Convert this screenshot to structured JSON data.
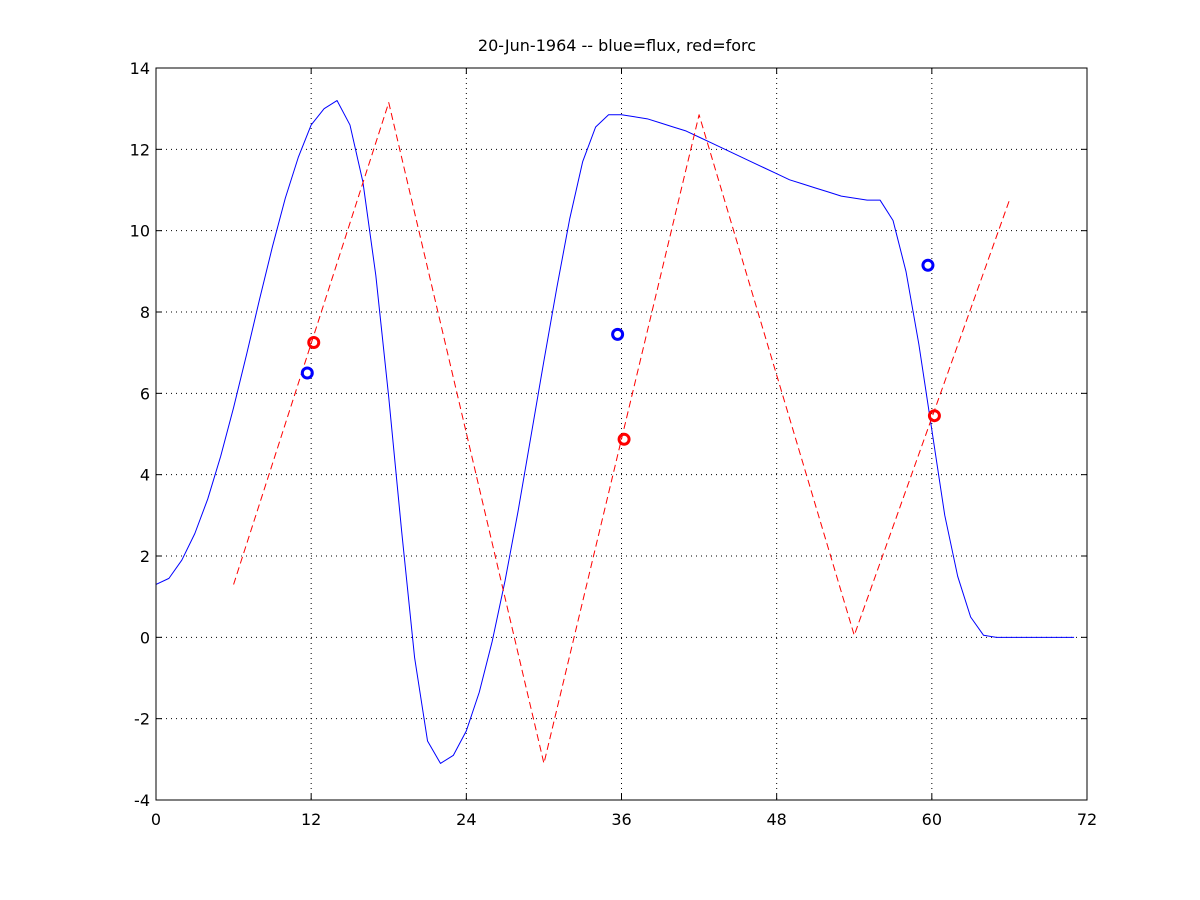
{
  "chart_data": {
    "type": "line",
    "title": "20-Jun-1964 -- blue=flux, red=forc",
    "xlabel": "",
    "ylabel": "",
    "xlim": [
      0,
      72
    ],
    "ylim": [
      -4,
      14
    ],
    "xticks": [
      0,
      12,
      24,
      36,
      48,
      60,
      72
    ],
    "yticks": [
      -4,
      -2,
      0,
      2,
      4,
      6,
      8,
      10,
      12,
      14
    ],
    "grid": true,
    "series": [
      {
        "color": "#0000ff",
        "style": "solid",
        "x": [
          0,
          1,
          2,
          3,
          4,
          5,
          6,
          7,
          8,
          9,
          10,
          11,
          12,
          13,
          14,
          15,
          16,
          17,
          18,
          19,
          20,
          21,
          22,
          23,
          24,
          25,
          26,
          27,
          28,
          29,
          30,
          31,
          32,
          33,
          34,
          35,
          36,
          37,
          38,
          39,
          40,
          41,
          42,
          43,
          44,
          45,
          46,
          47,
          48,
          49,
          50,
          51,
          52,
          53,
          54,
          55,
          56,
          57,
          58,
          59,
          60,
          61,
          62,
          63,
          64,
          65,
          66,
          67,
          68,
          69,
          70,
          71
        ],
        "y": [
          1.3,
          1.45,
          1.9,
          2.55,
          3.4,
          4.45,
          5.65,
          6.95,
          8.3,
          9.6,
          10.8,
          11.8,
          12.6,
          13.0,
          13.2,
          12.6,
          11.2,
          8.9,
          5.9,
          2.6,
          -0.5,
          -2.55,
          -3.1,
          -2.9,
          -2.3,
          -1.35,
          -0.1,
          1.4,
          3.1,
          4.95,
          6.8,
          8.6,
          10.3,
          11.7,
          12.55,
          12.85,
          12.85,
          12.8,
          12.75,
          12.65,
          12.55,
          12.45,
          12.3,
          12.15,
          12.0,
          11.85,
          11.7,
          11.55,
          11.4,
          11.25,
          11.15,
          11.05,
          10.95,
          10.85,
          10.8,
          10.75,
          10.75,
          10.25,
          9.0,
          7.2,
          5.1,
          3.0,
          1.5,
          0.5,
          0.05,
          0.0,
          0.0,
          0.0,
          0.0,
          0.0,
          0.0,
          0.0
        ]
      },
      {
        "color": "#ff0000",
        "style": "dashed",
        "x": [
          6,
          18,
          30,
          42,
          54,
          66
        ],
        "y": [
          1.3,
          13.15,
          -3.1,
          12.85,
          0.05,
          10.75
        ]
      }
    ],
    "markers": [
      {
        "color": "#0000ff",
        "x": 11.7,
        "y": 6.5
      },
      {
        "color": "#ff0000",
        "x": 12.2,
        "y": 7.25
      },
      {
        "color": "#0000ff",
        "x": 35.7,
        "y": 7.45
      },
      {
        "color": "#ff0000",
        "x": 36.2,
        "y": 4.87
      },
      {
        "color": "#0000ff",
        "x": 59.7,
        "y": 9.15
      },
      {
        "color": "#ff0000",
        "x": 60.2,
        "y": 5.45
      }
    ]
  }
}
